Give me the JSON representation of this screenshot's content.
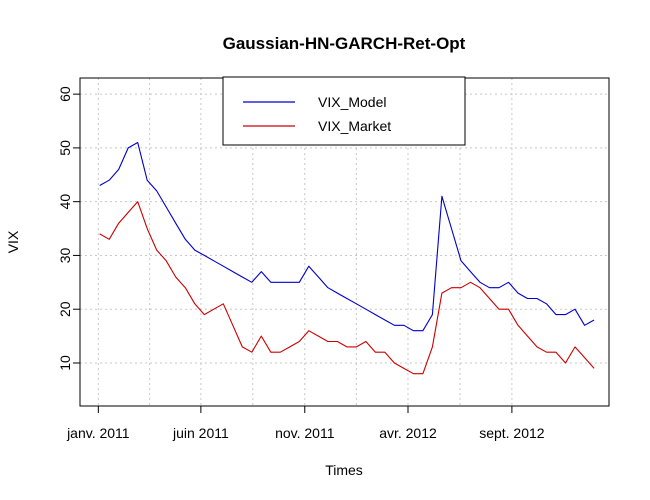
{
  "chart_data": {
    "type": "line",
    "title": "Gaussian-HN-GARCH-Ret-Opt",
    "xlabel": "Times",
    "ylabel": "VIX",
    "x_ticks": [
      "janv. 2011",
      "juin 2011",
      "nov. 2011",
      "avr. 2012",
      "sept. 2012"
    ],
    "x_tick_dates": [
      "2011-01-01",
      "2011-06-01",
      "2011-11-01",
      "2012-04-01",
      "2012-09-01"
    ],
    "x_range": [
      "2010-12-05",
      "2013-01-22"
    ],
    "ylim": [
      2,
      63
    ],
    "y_ticks": [
      10,
      20,
      30,
      40,
      50,
      60
    ],
    "grid": true,
    "legend_position": "top-center",
    "x": [
      "2011-01-03",
      "2011-01-17",
      "2011-01-31",
      "2011-02-14",
      "2011-02-28",
      "2011-03-14",
      "2011-03-28",
      "2011-04-11",
      "2011-04-25",
      "2011-05-09",
      "2011-05-23",
      "2011-06-06",
      "2011-06-20",
      "2011-07-04",
      "2011-07-18",
      "2011-08-01",
      "2011-08-15",
      "2011-08-29",
      "2011-09-12",
      "2011-09-26",
      "2011-10-10",
      "2011-10-24",
      "2011-11-07",
      "2011-11-21",
      "2011-12-05",
      "2011-12-19",
      "2012-01-02",
      "2012-01-16",
      "2012-01-30",
      "2012-02-13",
      "2012-02-27",
      "2012-03-12",
      "2012-03-26",
      "2012-04-09",
      "2012-04-23",
      "2012-05-07",
      "2012-05-21",
      "2012-06-04",
      "2012-06-18",
      "2012-07-02",
      "2012-07-16",
      "2012-07-30",
      "2012-08-13",
      "2012-08-27",
      "2012-09-10",
      "2012-09-24",
      "2012-10-08",
      "2012-10-22",
      "2012-11-05",
      "2012-11-19",
      "2012-12-03",
      "2012-12-17",
      "2012-12-31"
    ],
    "series": [
      {
        "name": "VIX_Model",
        "color": "#0000cc",
        "values": [
          43,
          44,
          46,
          50,
          51,
          44,
          42,
          39,
          36,
          33,
          31,
          30,
          29,
          28,
          27,
          26,
          25,
          27,
          25,
          25,
          25,
          25,
          28,
          26,
          24,
          23,
          22,
          21,
          20,
          19,
          18,
          17,
          17,
          16,
          16,
          19,
          41,
          35,
          29,
          27,
          25,
          24,
          24,
          25,
          23,
          22,
          22,
          21,
          19,
          19,
          20,
          17,
          18
        ]
      },
      {
        "name": "VIX_Market",
        "color": "#cc0000",
        "values": [
          34,
          33,
          36,
          38,
          40,
          35,
          31,
          29,
          26,
          24,
          21,
          19,
          20,
          21,
          17,
          13,
          12,
          15,
          12,
          12,
          13,
          14,
          16,
          15,
          14,
          14,
          13,
          13,
          14,
          12,
          12,
          10,
          9,
          8,
          8,
          13,
          23,
          24,
          24,
          25,
          24,
          22,
          20,
          20,
          17,
          15,
          13,
          12,
          12,
          10,
          13,
          11,
          9
        ]
      }
    ]
  }
}
